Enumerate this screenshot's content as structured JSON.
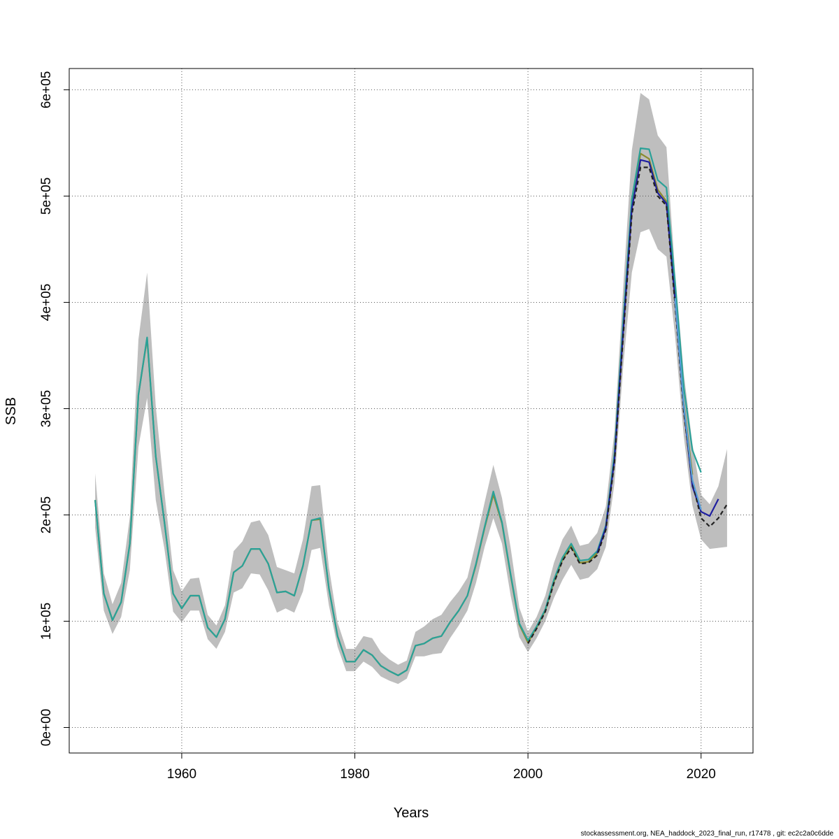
{
  "chart_data": {
    "type": "line",
    "title": "",
    "xlabel": "Years",
    "ylabel": "SSB",
    "xlim": [
      1947,
      2026
    ],
    "ylim": [
      -24000,
      620000
    ],
    "x_ticks": [
      1960,
      1980,
      2000,
      2020
    ],
    "x_tick_labels": [
      "1960",
      "1980",
      "2000",
      "2020"
    ],
    "y_ticks": [
      0,
      100000,
      200000,
      300000,
      400000,
      500000,
      600000
    ],
    "y_tick_labels": [
      "0e+00",
      "1e+05",
      "2e+05",
      "3e+05",
      "4e+05",
      "5e+05",
      "6e+05"
    ],
    "grid": true,
    "confidence_band": {
      "x": [
        1950,
        1951,
        1952,
        1953,
        1954,
        1955,
        1956,
        1957,
        1958,
        1959,
        1960,
        1961,
        1962,
        1963,
        1964,
        1965,
        1966,
        1967,
        1968,
        1969,
        1970,
        1971,
        1972,
        1973,
        1974,
        1975,
        1976,
        1977,
        1978,
        1979,
        1980,
        1981,
        1982,
        1983,
        1984,
        1985,
        1986,
        1987,
        1988,
        1989,
        1990,
        1991,
        1992,
        1993,
        1994,
        1995,
        1996,
        1997,
        1998,
        1999,
        2000,
        2001,
        2002,
        2003,
        2004,
        2005,
        2006,
        2007,
        2008,
        2009,
        2010,
        2011,
        2012,
        2013,
        2014,
        2015,
        2016,
        2017,
        2018,
        2019,
        2020,
        2021,
        2022,
        2023
      ],
      "lower": [
        188000,
        110000,
        88000,
        104000,
        148000,
        264000,
        310000,
        214000,
        168000,
        109000,
        99000,
        110000,
        110000,
        83000,
        74000,
        90000,
        127000,
        131000,
        145000,
        144000,
        129000,
        108000,
        112000,
        108000,
        128000,
        167000,
        169000,
        115000,
        76000,
        53000,
        53000,
        62000,
        57000,
        48000,
        44000,
        41000,
        46000,
        67000,
        67000,
        69000,
        70000,
        84000,
        96000,
        110000,
        136000,
        170000,
        197000,
        173000,
        124000,
        85000,
        71000,
        84000,
        100000,
        122000,
        139000,
        153000,
        139000,
        141000,
        149000,
        170000,
        230000,
        339000,
        428000,
        466000,
        469000,
        450000,
        443000,
        368000,
        274000,
        209000,
        177000,
        168000,
        169000,
        170000
      ],
      "upper": [
        239000,
        145000,
        116000,
        136000,
        198000,
        365000,
        428000,
        302000,
        221000,
        148000,
        128000,
        140000,
        141000,
        106000,
        96000,
        115000,
        166000,
        175000,
        193000,
        195000,
        181000,
        151000,
        148000,
        145000,
        177000,
        227000,
        228000,
        151000,
        99000,
        74000,
        74000,
        86000,
        84000,
        71000,
        64000,
        59000,
        63000,
        90000,
        95000,
        102000,
        106000,
        118000,
        128000,
        141000,
        175000,
        212000,
        247000,
        216000,
        169000,
        113000,
        90000,
        104000,
        124000,
        155000,
        177000,
        190000,
        171000,
        173000,
        183000,
        208000,
        279000,
        413000,
        543000,
        597000,
        591000,
        557000,
        546000,
        428000,
        333000,
        267000,
        219000,
        210000,
        227000,
        262000
      ]
    },
    "series": [
      {
        "color": "#8b8b2e",
        "x": [
          1950,
          1951,
          1952,
          1953,
          1954,
          1955,
          1956,
          1957,
          1958,
          1959,
          1960,
          1961,
          1962,
          1963,
          1964,
          1965,
          1966,
          1967,
          1968,
          1969,
          1970,
          1971,
          1972,
          1973,
          1974,
          1975,
          1976,
          1977,
          1978,
          1979,
          1980,
          1981,
          1982,
          1983,
          1984,
          1985,
          1986,
          1987,
          1988,
          1989,
          1990,
          1991,
          1992,
          1993,
          1994,
          1995,
          1996,
          1997,
          1998,
          1999,
          2000,
          2001,
          2002,
          2003,
          2004,
          2005,
          2006,
          2007,
          2008,
          2009,
          2010,
          2011,
          2012,
          2013,
          2014,
          2015,
          2016,
          2017,
          2018,
          2019
        ],
        "y": [
          214000,
          126000,
          101000,
          118000,
          173000,
          313000,
          366000,
          255000,
          193000,
          126000,
          112000,
          124000,
          124000,
          94000,
          85000,
          102000,
          146000,
          152000,
          168000,
          168000,
          154000,
          127000,
          128000,
          124000,
          152000,
          195000,
          196000,
          131000,
          86000,
          62000,
          62000,
          73000,
          68000,
          58000,
          53000,
          49000,
          54000,
          77000,
          79000,
          84000,
          86000,
          99000,
          110000,
          124000,
          153000,
          188000,
          219000,
          192000,
          143000,
          97000,
          80000,
          94000,
          110000,
          137000,
          158000,
          171000,
          155000,
          156000,
          164000,
          188000,
          254000,
          376000,
          491000,
          540000,
          535000,
          506000,
          495000,
          405000,
          305000,
          238000
        ]
      },
      {
        "color": "#2aa198",
        "x": [
          1950,
          1951,
          1952,
          1953,
          1954,
          1955,
          1956,
          1957,
          1958,
          1959,
          1960,
          1961,
          1962,
          1963,
          1964,
          1965,
          1966,
          1967,
          1968,
          1969,
          1970,
          1971,
          1972,
          1973,
          1974,
          1975,
          1976,
          1977,
          1978,
          1979,
          1980,
          1981,
          1982,
          1983,
          1984,
          1985,
          1986,
          1987,
          1988,
          1989,
          1990,
          1991,
          1992,
          1993,
          1994,
          1995,
          1996,
          1997,
          1998,
          1999,
          2000,
          2001,
          2002,
          2003,
          2004,
          2005,
          2006,
          2007,
          2008,
          2009,
          2010,
          2011,
          2012,
          2013,
          2014,
          2015,
          2016,
          2017,
          2018,
          2019,
          2020
        ],
        "y": [
          214000,
          126000,
          101000,
          118000,
          173000,
          313000,
          367000,
          255000,
          193000,
          126000,
          112000,
          124000,
          124000,
          94000,
          85000,
          102000,
          146000,
          152000,
          168000,
          168000,
          154000,
          127000,
          128000,
          124000,
          152000,
          195000,
          197000,
          131000,
          86000,
          62000,
          62000,
          73000,
          68000,
          58000,
          53000,
          49000,
          54000,
          77000,
          79000,
          84000,
          86000,
          99000,
          110000,
          124000,
          154000,
          189000,
          222000,
          193000,
          144000,
          98000,
          82000,
          95000,
          111000,
          139000,
          160000,
          173000,
          157000,
          158000,
          166000,
          190000,
          258000,
          382000,
          497000,
          545000,
          544000,
          515000,
          508000,
          418000,
          320000,
          261000,
          240000
        ]
      },
      {
        "color": "#1f1fa0",
        "x": [
          2008,
          2009,
          2010,
          2011,
          2012,
          2013,
          2014,
          2015,
          2016,
          2017,
          2018,
          2019,
          2020,
          2021,
          2022
        ],
        "y": [
          164000,
          188000,
          252000,
          372000,
          488000,
          534000,
          532000,
          503000,
          493000,
          402000,
          300000,
          227000,
          203000,
          199000,
          215000
        ]
      },
      {
        "color": "#222222",
        "dashed": true,
        "x": [
          2000,
          2001,
          2002,
          2003,
          2004,
          2005,
          2006,
          2007,
          2008,
          2009,
          2010,
          2011,
          2012,
          2013,
          2014,
          2015,
          2016,
          2017,
          2018,
          2019,
          2020,
          2021,
          2022,
          2023
        ],
        "y": [
          79000,
          93000,
          109000,
          136000,
          157000,
          169000,
          154000,
          155000,
          162000,
          186000,
          250000,
          368000,
          483000,
          527000,
          527000,
          500000,
          491000,
          398000,
          297000,
          231000,
          197000,
          189000,
          197000,
          210000
        ]
      },
      {
        "color": "#5aa0d8",
        "x": [
          2017,
          2018,
          2019,
          2020
        ],
        "y": [
          404000,
          303000,
          233000,
          205000
        ]
      }
    ]
  },
  "footer": "stockassessment.org, NEA_haddock_2023_final_run, r17478 , git: ec2c2a0c6dde"
}
